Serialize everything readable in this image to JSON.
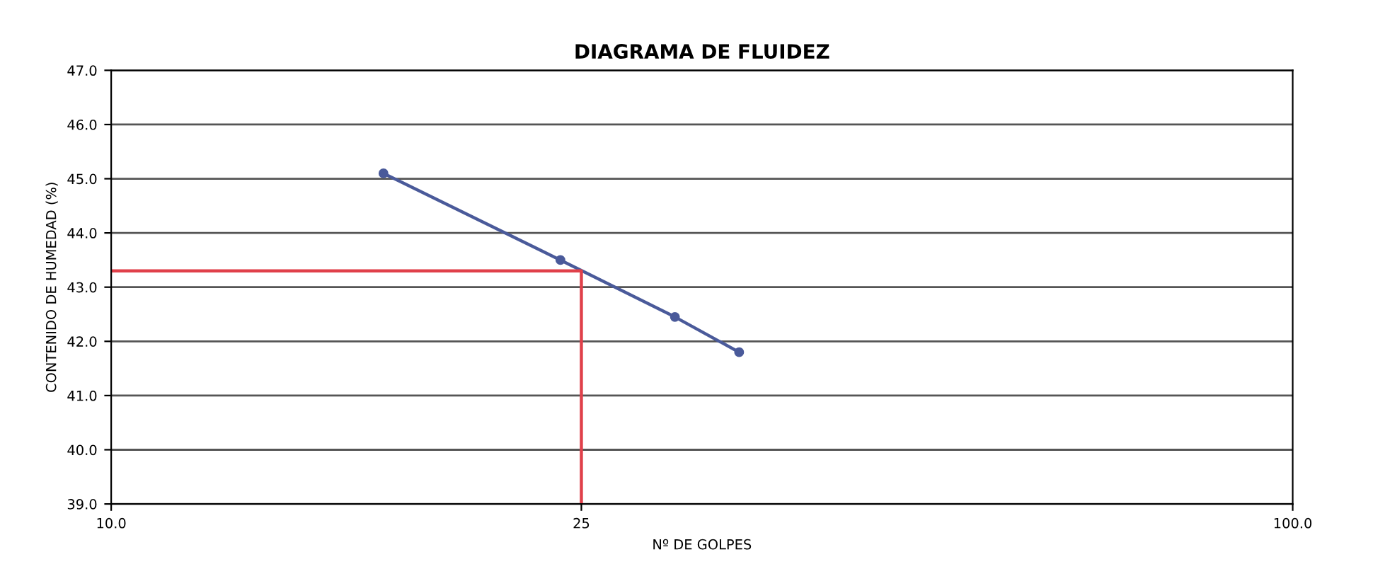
{
  "chart_data": {
    "type": "line",
    "title": "DIAGRAMA DE FLUIDEZ",
    "xlabel": "Nº DE GOLPES",
    "ylabel": "CONTENIDO DE HUMEDAD (%)",
    "log": "x",
    "xlim": [
      10,
      100
    ],
    "xticks": [
      {
        "value": 10,
        "label": "10.0"
      },
      {
        "value": 25,
        "label": "25"
      },
      {
        "value": 100,
        "label": "100.0"
      }
    ],
    "ylim": [
      39,
      47
    ],
    "yticks": [
      {
        "value": 39,
        "label": "39.0"
      },
      {
        "value": 40,
        "label": "40.0"
      },
      {
        "value": 41,
        "label": "41.0"
      },
      {
        "value": 42,
        "label": "42.0"
      },
      {
        "value": 43,
        "label": "43.0"
      },
      {
        "value": 44,
        "label": "44.0"
      },
      {
        "value": 45,
        "label": "45.0"
      },
      {
        "value": 46,
        "label": "46.0"
      },
      {
        "value": 47,
        "label": "47.0"
      }
    ],
    "grid": "y",
    "series": [
      {
        "color": "#4a5a9a",
        "marker": "circle",
        "x": [
          17,
          24,
          30,
          34
        ],
        "values": [
          45.1,
          43.5,
          42.45,
          41.8
        ]
      },
      {
        "color": "#e0404a",
        "marker": "none",
        "x": [
          10,
          25,
          25
        ],
        "values": [
          43.3,
          43.3,
          39
        ]
      }
    ]
  }
}
